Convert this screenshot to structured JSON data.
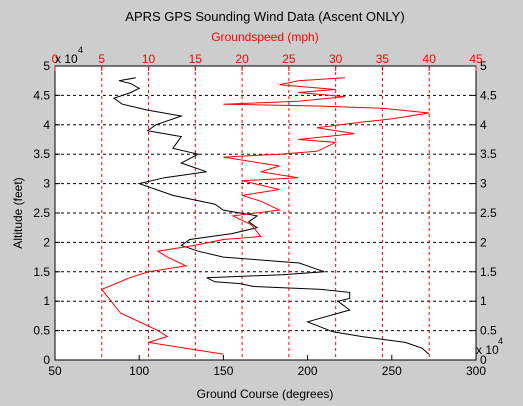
{
  "chart_data": {
    "type": "line",
    "title": "APRS GPS Sounding Wind Data (Ascent ONLY)",
    "xlabel": "Ground Course (degrees)",
    "x2label": "Groundspeed (mph)",
    "ylabel": "Altitude (feet)",
    "y_multiplier_label": "x 10",
    "y_multiplier_exp": "4",
    "xlim": [
      50,
      300
    ],
    "x2lim": [
      0,
      45
    ],
    "ylim": [
      0,
      5
    ],
    "xticks": [
      "50",
      "100",
      "150",
      "200",
      "250",
      "300"
    ],
    "x2ticks": [
      "0",
      "5",
      "10",
      "15",
      "20",
      "25",
      "30",
      "35",
      "40",
      "45"
    ],
    "yticks": [
      "0",
      "0.5",
      "1",
      "1.5",
      "2",
      "2.5",
      "3",
      "3.5",
      "4",
      "4.5",
      "5"
    ],
    "grid": "dashed",
    "colors": {
      "course": "#000000",
      "speed": "#ff0000",
      "plot_bg": "#ffffff",
      "figure_bg": "#cdcdcd"
    },
    "series": [
      {
        "axis": "bottom",
        "color": "#000000",
        "points": [
          [
            272,
            0.1
          ],
          [
            268,
            0.2
          ],
          [
            258,
            0.3
          ],
          [
            232,
            0.4
          ],
          [
            215,
            0.48
          ],
          [
            200,
            0.65
          ],
          [
            225,
            0.85
          ],
          [
            218,
            1.0
          ],
          [
            225,
            1.05
          ],
          [
            225,
            1.15
          ],
          [
            208,
            1.2
          ],
          [
            168,
            1.25
          ],
          [
            160,
            1.3
          ],
          [
            145,
            1.33
          ],
          [
            140,
            1.4
          ],
          [
            185,
            1.45
          ],
          [
            210,
            1.5
          ],
          [
            195,
            1.65
          ],
          [
            150,
            1.75
          ],
          [
            135,
            1.85
          ],
          [
            125,
            1.95
          ],
          [
            130,
            2.05
          ],
          [
            155,
            2.15
          ],
          [
            170,
            2.25
          ],
          [
            165,
            2.35
          ],
          [
            170,
            2.45
          ],
          [
            150,
            2.55
          ],
          [
            145,
            2.65
          ],
          [
            120,
            2.8
          ],
          [
            100,
            3.0
          ],
          [
            115,
            3.1
          ],
          [
            140,
            3.2
          ],
          [
            125,
            3.35
          ],
          [
            135,
            3.5
          ],
          [
            120,
            3.6
          ],
          [
            125,
            3.8
          ],
          [
            105,
            3.9
          ],
          [
            110,
            4.0
          ],
          [
            125,
            4.15
          ],
          [
            105,
            4.25
          ],
          [
            90,
            4.35
          ],
          [
            85,
            4.45
          ],
          [
            95,
            4.55
          ],
          [
            100,
            4.62
          ],
          [
            95,
            4.7
          ],
          [
            88,
            4.75
          ],
          [
            98,
            4.8
          ]
        ]
      },
      {
        "axis": "top",
        "color": "#ff0000",
        "points": [
          [
            18,
            0.1
          ],
          [
            16,
            0.15
          ],
          [
            10,
            0.3
          ],
          [
            12,
            0.4
          ],
          [
            11,
            0.5
          ],
          [
            7,
            0.8
          ],
          [
            6,
            1.0
          ],
          [
            5,
            1.2
          ],
          [
            8,
            1.4
          ],
          [
            10,
            1.5
          ],
          [
            14,
            1.6
          ],
          [
            12,
            1.75
          ],
          [
            11,
            1.85
          ],
          [
            15,
            1.95
          ],
          [
            18,
            2.05
          ],
          [
            22,
            2.1
          ],
          [
            21,
            2.3
          ],
          [
            19,
            2.45
          ],
          [
            24,
            2.55
          ],
          [
            22,
            2.7
          ],
          [
            20,
            2.8
          ],
          [
            24,
            2.9
          ],
          [
            20,
            3.05
          ],
          [
            26,
            3.1
          ],
          [
            22,
            3.2
          ],
          [
            24,
            3.3
          ],
          [
            18,
            3.45
          ],
          [
            24,
            3.5
          ],
          [
            28,
            3.55
          ],
          [
            30,
            3.7
          ],
          [
            26,
            3.75
          ],
          [
            32,
            3.85
          ],
          [
            28,
            3.95
          ],
          [
            33,
            4.05
          ],
          [
            36,
            4.1
          ],
          [
            40,
            4.2
          ],
          [
            35,
            4.28
          ],
          [
            28,
            4.32
          ],
          [
            18,
            4.35
          ],
          [
            26,
            4.4
          ],
          [
            31,
            4.48
          ],
          [
            26,
            4.55
          ],
          [
            30,
            4.6
          ],
          [
            24,
            4.68
          ],
          [
            26,
            4.75
          ],
          [
            31,
            4.8
          ]
        ]
      }
    ]
  }
}
